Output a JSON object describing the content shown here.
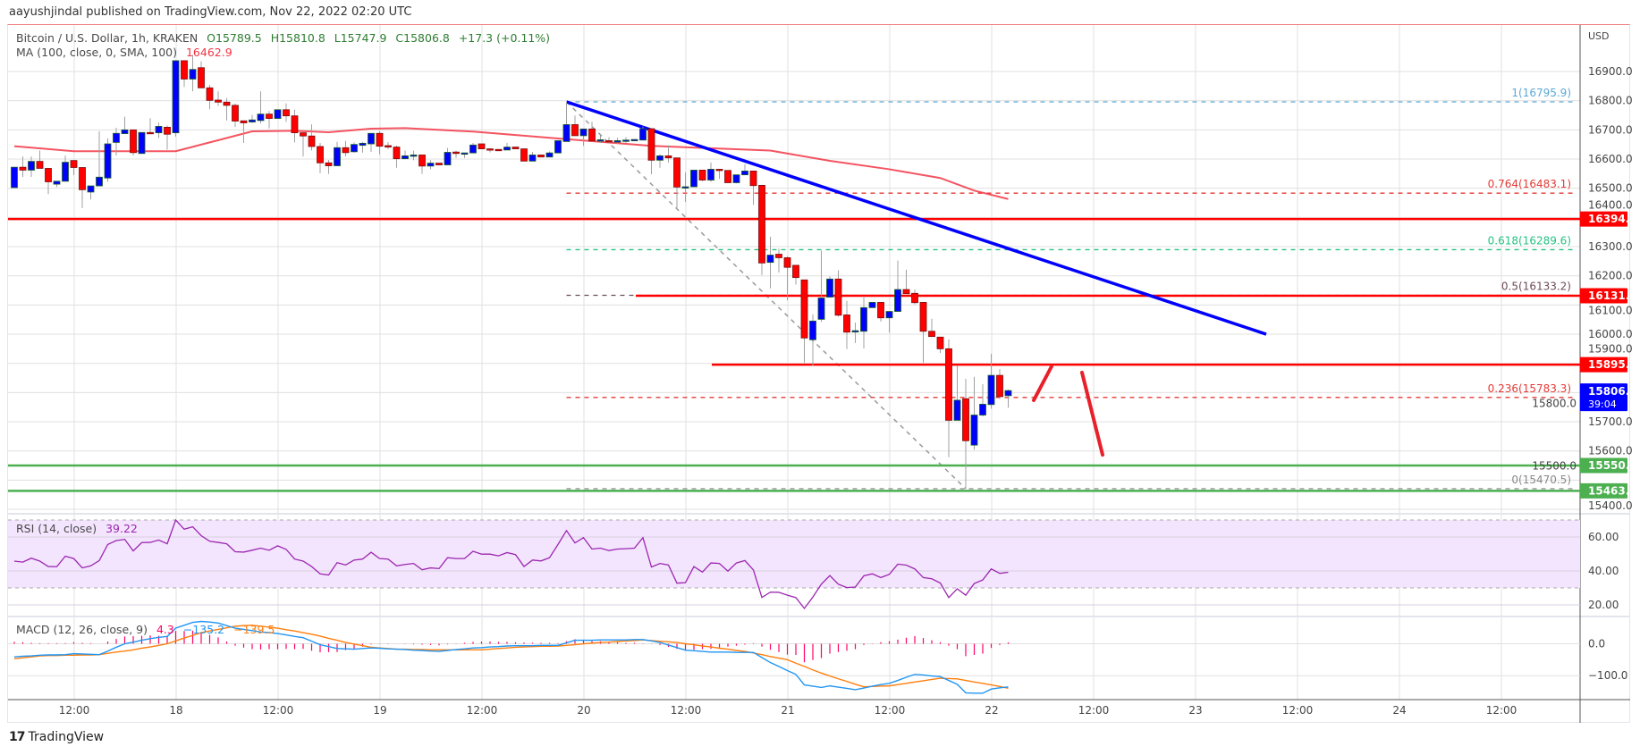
{
  "header": {
    "publish_line": "aayushjindal published on TradingView.com, Nov 22, 2022 02:20 UTC"
  },
  "legend": {
    "symbol": "Bitcoin / U.S. Dollar, 1h, KRAKEN",
    "open": "O15789.5",
    "high": "H15810.8",
    "low": "L15747.9",
    "close": "C15806.8",
    "change": "+17.3 (+0.11%)",
    "ma_label": "MA (100, close, 0, SMA, 100)",
    "ma_value": "16462.9"
  },
  "rsi_legend": {
    "label": "RSI (14, close)",
    "value": "39.22"
  },
  "macd_legend": {
    "label": "MACD (12, 26, close, 9)",
    "hist": "4.3",
    "macd": "−135.2",
    "signal": "−139.5"
  },
  "footer": {
    "brand": "TradingView",
    "logo": "17"
  },
  "colors": {
    "bull": "#0000ff",
    "bear": "#ff0000",
    "ma": "#f23645",
    "trendline": "#0000ff",
    "rsi": "#9c27b0",
    "macd": "#2196f3",
    "signal": "#ff7f0e",
    "hist": "#ff0066",
    "support": "#4caf50",
    "resistance": "#ff0000"
  },
  "chart_data": {
    "type": "candlestick",
    "interval": "1h",
    "currency_label": "USD",
    "price_ticks": [
      "16900.0",
      "16800.0",
      "16700.0",
      "16600.0",
      "16500.0",
      "16400.0",
      "16300.0",
      "16200.0",
      "16100.0",
      "16000.0",
      "15900.0",
      "15800.0",
      "15700.0",
      "15600.0",
      "15500.0",
      "15400.0"
    ],
    "time_ticks": [
      "12:00",
      "18",
      "12:00",
      "19",
      "12:00",
      "20",
      "12:00",
      "21",
      "12:00",
      "22",
      "12:00",
      "23",
      "12:00",
      "24",
      "12:00"
    ],
    "candles_ohlc": [
      [
        16502,
        16572,
        16502,
        16572
      ],
      [
        16572,
        16609,
        16539,
        16562
      ],
      [
        16562,
        16609,
        16539,
        16592
      ],
      [
        16592,
        16629,
        16568,
        16568
      ],
      [
        16568,
        16568,
        16480,
        16522
      ],
      [
        16514,
        16524,
        16504,
        16524
      ],
      [
        16524,
        16612,
        16524,
        16589
      ],
      [
        16595,
        16595,
        16545,
        16571
      ],
      [
        16571,
        16571,
        16432,
        16495
      ],
      [
        16487,
        16508,
        16462,
        16508
      ],
      [
        16508,
        16695,
        16508,
        16538
      ],
      [
        16535,
        16671,
        16522,
        16652
      ],
      [
        16657,
        16707,
        16612,
        16688
      ],
      [
        16687,
        16745,
        16687,
        16700
      ],
      [
        16700,
        16700,
        16612,
        16622
      ],
      [
        16619,
        16691,
        16619,
        16691
      ],
      [
        16691,
        16740,
        16690,
        16690
      ],
      [
        16690,
        16725,
        16672,
        16712
      ],
      [
        16709,
        16715,
        16632,
        16685
      ],
      [
        16690,
        16937,
        16677,
        16937
      ],
      [
        16937,
        16937,
        16847,
        16874
      ],
      [
        16874,
        16957,
        16832,
        16907
      ],
      [
        16913,
        16935,
        16844,
        16844
      ],
      [
        16844,
        16854,
        16771,
        16801
      ],
      [
        16802,
        16832,
        16782,
        16795
      ],
      [
        16795,
        16809,
        16732,
        16784
      ],
      [
        16784,
        16790,
        16710,
        16730
      ],
      [
        16731,
        16731,
        16655,
        16724
      ],
      [
        16727,
        16751,
        16724,
        16734
      ],
      [
        16732,
        16832,
        16722,
        16754
      ],
      [
        16754,
        16764,
        16705,
        16739
      ],
      [
        16739,
        16769,
        16739,
        16769
      ],
      [
        16769,
        16791,
        16727,
        16748
      ],
      [
        16748,
        16769,
        16657,
        16690
      ],
      [
        16690,
        16690,
        16609,
        16679
      ],
      [
        16679,
        16719,
        16629,
        16643
      ],
      [
        16643,
        16655,
        16552,
        16587
      ],
      [
        16587,
        16597,
        16549,
        16577
      ],
      [
        16577,
        16659,
        16577,
        16639
      ],
      [
        16639,
        16662,
        16609,
        16622
      ],
      [
        16625,
        16657,
        16622,
        16650
      ],
      [
        16647,
        16659,
        16622,
        16654
      ],
      [
        16652,
        16688,
        16625,
        16688
      ],
      [
        16688,
        16696,
        16616,
        16644
      ],
      [
        16646,
        16658,
        16634,
        16641
      ],
      [
        16641,
        16646,
        16570,
        16601
      ],
      [
        16601,
        16629,
        16601,
        16611
      ],
      [
        16611,
        16629,
        16596,
        16614
      ],
      [
        16614,
        16614,
        16549,
        16576
      ],
      [
        16576,
        16596,
        16565,
        16586
      ],
      [
        16586,
        16586,
        16580,
        16580
      ],
      [
        16580,
        16638,
        16580,
        16623
      ],
      [
        16624,
        16629,
        16604,
        16619
      ],
      [
        16619,
        16621,
        16604,
        16621
      ],
      [
        16621,
        16655,
        16621,
        16648
      ],
      [
        16652,
        16652,
        16635,
        16635
      ],
      [
        16635,
        16635,
        16623,
        16633
      ],
      [
        16633,
        16633,
        16630,
        16630
      ],
      [
        16631,
        16655,
        16631,
        16641
      ],
      [
        16641,
        16641,
        16635,
        16635
      ],
      [
        16635,
        16635,
        16593,
        16593
      ],
      [
        16593,
        16624,
        16593,
        16614
      ],
      [
        16614,
        16614,
        16607,
        16607
      ],
      [
        16607,
        16626,
        16607,
        16621
      ],
      [
        16621,
        16663,
        16621,
        16663
      ],
      [
        16660,
        16796,
        16660,
        16718
      ],
      [
        16718,
        16749,
        16680,
        16680
      ],
      [
        16680,
        16703,
        16645,
        16703
      ],
      [
        16703,
        16728,
        16662,
        16662
      ],
      [
        16662,
        16686,
        16655,
        16666
      ],
      [
        16663,
        16675,
        16655,
        16659
      ],
      [
        16658,
        16673,
        16653,
        16663
      ],
      [
        16663,
        16675,
        16655,
        16665
      ],
      [
        16665,
        16667,
        16665,
        16667
      ],
      [
        16665,
        16711,
        16665,
        16704
      ],
      [
        16704,
        16704,
        16548,
        16596
      ],
      [
        16596,
        16616,
        16570,
        16611
      ],
      [
        16611,
        16647,
        16588,
        16604
      ],
      [
        16604,
        16604,
        16432,
        16504
      ],
      [
        16501,
        16555,
        16453,
        16505
      ],
      [
        16505,
        16562,
        16505,
        16562
      ],
      [
        16562,
        16562,
        16524,
        16528
      ],
      [
        16528,
        16588,
        16522,
        16565
      ],
      [
        16565,
        16565,
        16532,
        16561
      ],
      [
        16561,
        16561,
        16519,
        16519
      ],
      [
        16519,
        16546,
        16517,
        16546
      ],
      [
        16546,
        16583,
        16546,
        16559
      ],
      [
        16559,
        16559,
        16443,
        16509
      ],
      [
        16510,
        16512,
        16203,
        16244
      ],
      [
        16246,
        16334,
        16157,
        16271
      ],
      [
        16274,
        16293,
        16211,
        16262
      ],
      [
        16262,
        16267,
        16116,
        16229
      ],
      [
        16236,
        16236,
        16170,
        16194
      ],
      [
        16186,
        16186,
        15902,
        15987
      ],
      [
        15981,
        16068,
        15892,
        16045
      ],
      [
        16051,
        16286,
        16042,
        16124
      ],
      [
        16127,
        16198,
        16127,
        16189
      ],
      [
        16189,
        16219,
        16060,
        16065
      ],
      [
        16066,
        16114,
        15949,
        16007
      ],
      [
        16010,
        16040,
        15970,
        16012
      ],
      [
        16010,
        16130,
        15951,
        16091
      ],
      [
        16091,
        16109,
        16091,
        16109
      ],
      [
        16109,
        16109,
        16043,
        16056
      ],
      [
        16056,
        16078,
        16005,
        16078
      ],
      [
        16078,
        16252,
        16078,
        16153
      ],
      [
        16153,
        16221,
        16139,
        16139
      ],
      [
        16140,
        16153,
        16102,
        16108
      ],
      [
        16109,
        16109,
        15902,
        16010
      ],
      [
        16010,
        16053,
        15992,
        15992
      ],
      [
        15990,
        15990,
        15936,
        15950
      ],
      [
        15950,
        15982,
        15579,
        15705
      ],
      [
        15705,
        15892,
        15705,
        15774
      ],
      [
        15779,
        15847,
        15471,
        15635
      ],
      [
        15620,
        15854,
        15604,
        15723
      ],
      [
        15723,
        15829,
        15718,
        15760
      ],
      [
        15759,
        15933,
        15745,
        15859
      ],
      [
        15859,
        15880,
        15778,
        15786
      ],
      [
        15789.5,
        15810.8,
        15747.9,
        15806.8
      ]
    ],
    "ma100": [
      [
        0,
        16644
      ],
      [
        7,
        16627
      ],
      [
        19,
        16627
      ],
      [
        23,
        16657
      ],
      [
        28,
        16695
      ],
      [
        33,
        16697
      ],
      [
        37,
        16692
      ],
      [
        42,
        16704
      ],
      [
        46,
        16706
      ],
      [
        54,
        16694
      ],
      [
        65,
        16668
      ],
      [
        75,
        16645
      ],
      [
        89,
        16629
      ],
      [
        96,
        16594
      ],
      [
        103,
        16565
      ],
      [
        109,
        16535
      ],
      [
        113,
        16492
      ],
      [
        117,
        16463
      ]
    ],
    "fib_levels": [
      {
        "label": "1(16795.9)",
        "price": 16795.9,
        "color": "#5ba8d6"
      },
      {
        "label": "0.764(16483.1)",
        "price": 16483.1,
        "color": "#e53935"
      },
      {
        "label": "0.618(16289.6)",
        "price": 16289.6,
        "color": "#26c281"
      },
      {
        "label": "0.5(16133.2)",
        "price": 16133.2,
        "color": "#6d4c55"
      },
      {
        "label": "0.236(15783.3)",
        "price": 15783.3,
        "color": "#e53935"
      },
      {
        "label": "0(15470.5)",
        "price": 15470.5,
        "color": "#888888"
      }
    ],
    "horizontal_lines": [
      {
        "label": "16394.7",
        "price": 16394.7,
        "color": "#ff0000"
      },
      {
        "label": "16131.7",
        "price": 16131.7,
        "color": "#ff0000"
      },
      {
        "label": "15895.5",
        "price": 15895.5,
        "color": "#ff0000"
      },
      {
        "label": "15550.2",
        "price": 15550.2,
        "color": "#4caf50"
      },
      {
        "label": "15463.1",
        "price": 15463.1,
        "color": "#4caf50"
      }
    ],
    "trendline_prices": [
      16796,
      16000
    ],
    "last_price": {
      "value": "15806.8",
      "countdown": "39:04",
      "price": 15806.8
    },
    "rsi": {
      "ticks": [
        "60.00",
        "40.00",
        "20.00"
      ],
      "upper": 70,
      "lower": 30,
      "values": [
        45.8,
        45.2,
        47.5,
        45.8,
        42.6,
        42.5,
        48.7,
        47.3,
        41.8,
        43,
        46.1,
        55.6,
        57.9,
        58.6,
        51.8,
        56.7,
        56.8,
        58.2,
        56,
        70,
        64.6,
        66,
        60.8,
        57.5,
        56.8,
        56,
        51.3,
        51.1,
        52.2,
        53.4,
        52.2,
        54.8,
        52.7,
        47,
        45.8,
        42.6,
        38.3,
        37.6,
        44.9,
        43.5,
        46.4,
        47,
        51,
        47.3,
        47,
        43,
        43.8,
        44.4,
        40.7,
        41.8,
        41.4,
        47.8,
        47.3,
        47.3,
        51.6,
        49.9,
        49.9,
        48.9,
        50.8,
        49.6,
        42.6,
        46.4,
        45.9,
        47.8,
        55.6,
        63.8,
        56.5,
        59.6,
        52.9,
        53.4,
        52,
        52.9,
        53.1,
        53.4,
        59.6,
        42.3,
        44.4,
        43.5,
        32.8,
        33.1,
        42.6,
        39.3,
        44.7,
        44.4,
        39.9,
        44.7,
        46.1,
        40.6,
        24.4,
        27.5,
        27.4,
        25.7,
        24.3,
        17.9,
        24.6,
        32.2,
        37.3,
        32.2,
        30.2,
        30.5,
        37.1,
        38.3,
        36.1,
        38,
        44,
        43.4,
        41.2,
        36.1,
        35.4,
        32.9,
        24.3,
        29.5,
        25.7,
        32.6,
        34.7,
        41.2,
        38.6,
        39.22
      ]
    },
    "macd": {
      "ticks": [
        "0.0",
        "−100.0"
      ],
      "macd": [
        -41,
        -39,
        -38,
        -36,
        -35,
        -35,
        -34,
        -31,
        -32,
        -33,
        -34,
        -23,
        -11,
        0,
        5,
        11,
        16,
        20,
        23,
        49,
        58,
        67,
        70,
        68,
        65,
        57,
        49,
        45,
        41,
        37,
        35,
        32,
        28,
        23,
        19,
        8,
        -3,
        -9,
        -15,
        -16,
        -17,
        -15,
        -13,
        -14,
        -16,
        -17,
        -18,
        -20,
        -21,
        -23,
        -24,
        -21,
        -18,
        -16,
        -13,
        -12,
        -10,
        -9,
        -7,
        -6,
        -6,
        -6,
        -5,
        -5,
        -5,
        3,
        11,
        11,
        11,
        12,
        12,
        12,
        12,
        13,
        13,
        9,
        4,
        -4,
        -12,
        -20,
        -22,
        -24,
        -26,
        -26,
        -26,
        -27,
        -27,
        -27,
        -43,
        -59,
        -71,
        -84,
        -96,
        -129,
        -133,
        -137,
        -132,
        -136,
        -140,
        -144,
        -139,
        -133,
        -128,
        -124,
        -115,
        -105,
        -96,
        -98,
        -101,
        -103,
        -115,
        -127,
        -154,
        -155,
        -155,
        -142,
        -138,
        -135.2
      ],
      "signal": [
        -47,
        -44,
        -41,
        -38,
        -37,
        -37,
        -36,
        -36,
        -35,
        -35,
        -34,
        -30,
        -26,
        -23,
        -19,
        -14,
        -10,
        -5,
        0,
        9,
        18,
        26,
        35,
        40,
        45,
        50,
        55,
        57,
        58,
        55,
        52,
        49,
        44,
        40,
        35,
        30,
        24,
        17,
        11,
        4,
        -1,
        -6,
        -11,
        -13,
        -15,
        -17,
        -17,
        -18,
        -18,
        -19,
        -19,
        -19,
        -19,
        -19,
        -19,
        -19,
        -17,
        -15,
        -13,
        -11,
        -10,
        -9,
        -8,
        -8,
        -7,
        -5,
        -3,
        0,
        2,
        4,
        5,
        7,
        9,
        10,
        12,
        10,
        8,
        6,
        4,
        0,
        -3,
        -7,
        -10,
        -14,
        -17,
        -21,
        -24,
        -29,
        -34,
        -40,
        -45,
        -50,
        -61,
        -71,
        -82,
        -92,
        -101,
        -110,
        -118,
        -127,
        -135,
        -134,
        -133,
        -132,
        -128,
        -124,
        -120,
        -116,
        -112,
        -108,
        -109,
        -110,
        -115,
        -120,
        -124,
        -129,
        -134,
        -139.5
      ]
    }
  }
}
